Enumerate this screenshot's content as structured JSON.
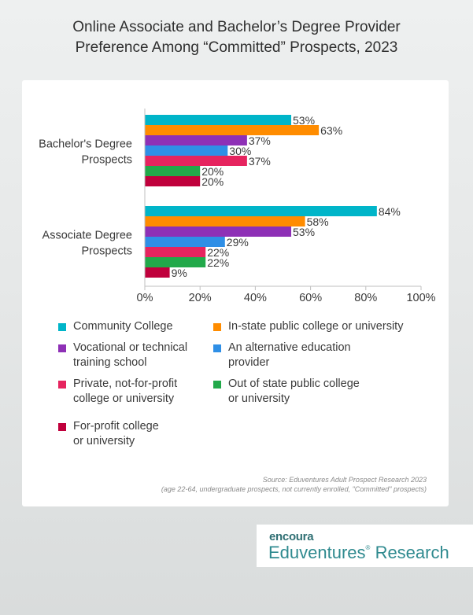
{
  "header": {
    "title_line1": "Online Associate and Bachelor’s Degree Provider",
    "title_line2": "Preference Among “Committed” Prospects, 2023"
  },
  "chart_data": {
    "type": "bar",
    "orientation": "horizontal",
    "categories": [
      "Bachelor's Degree\nProspects",
      "Associate Degree\nProspects"
    ],
    "series": [
      {
        "name": "Community College",
        "color": "#00b5c9",
        "values": [
          53,
          84
        ]
      },
      {
        "name": "In-state public college or university",
        "color": "#ff8c00",
        "values": [
          63,
          58
        ]
      },
      {
        "name": "Vocational or technical\ntraining school",
        "color": "#8e30b6",
        "values": [
          37,
          53
        ]
      },
      {
        "name": "An alternative education\nprovider",
        "color": "#2f8fe6",
        "values": [
          30,
          29
        ]
      },
      {
        "name": "Private, not-for-profit\ncollege or university",
        "color": "#e6245f",
        "values": [
          37,
          22
        ]
      },
      {
        "name": "Out of state public college\nor university",
        "color": "#22a94a",
        "values": [
          20,
          22
        ]
      },
      {
        "name": "For-profit college\nor university",
        "color": "#c0003c",
        "values": [
          20,
          9
        ]
      }
    ],
    "value_labels": [
      [
        "53%",
        "63%",
        "37%",
        "30%",
        "37%",
        "20%",
        "20%"
      ],
      [
        "84%",
        "58%",
        "53%",
        "29%",
        "22%",
        "22%",
        "9%"
      ]
    ],
    "xlim": [
      0,
      100
    ],
    "xticks": [
      "0%",
      "20%",
      "40%",
      "60%",
      "80%",
      "100%"
    ],
    "grid": false,
    "legend_position": "bottom"
  },
  "source": {
    "line1": "Source: Eduventures Adult Prospect Research 2023",
    "line2": "(age 22-64, undergraduate prospects, not currently enrolled, \"Committed\" prospects)"
  },
  "logo": {
    "brand": "encoura",
    "name": "Eduventures",
    "suffix": "Research"
  }
}
